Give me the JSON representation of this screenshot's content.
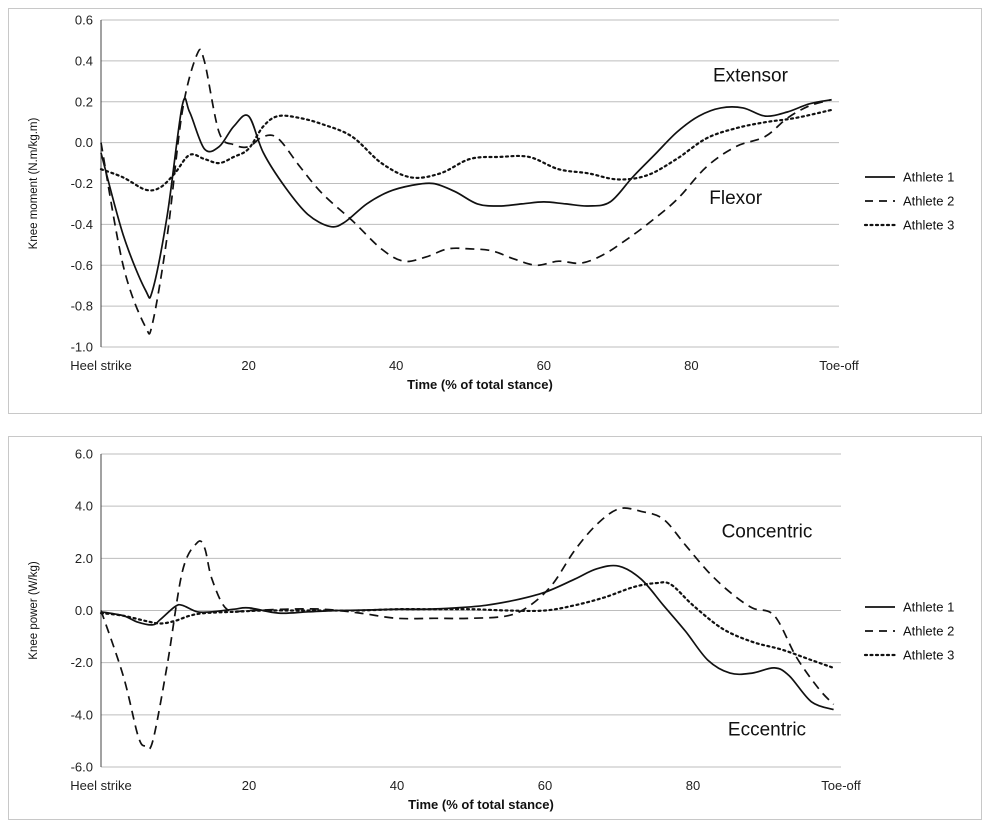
{
  "chart_data": [
    {
      "type": "line",
      "ylabel": "Knee moment (N.m/kg.m)",
      "xlabel": "Time (% of total stance)",
      "x_tick_labels": [
        {
          "x": 0,
          "label": "Heel strike"
        },
        {
          "x": 20,
          "label": "20"
        },
        {
          "x": 40,
          "label": "40"
        },
        {
          "x": 60,
          "label": "60"
        },
        {
          "x": 80,
          "label": "80"
        },
        {
          "x": 100,
          "label": "Toe-off"
        }
      ],
      "y_tick_labels": [
        "0.6",
        "0.4",
        "0.2",
        "0.0",
        "-0.2",
        "-0.4",
        "-0.6",
        "-0.8",
        "-1.0"
      ],
      "xlim": [
        0,
        100
      ],
      "ylim": [
        -1.0,
        0.6
      ],
      "yticks": [
        0.6,
        0.4,
        0.2,
        0.0,
        -0.2,
        -0.4,
        -0.6,
        -0.8,
        -1.0
      ],
      "grid": true,
      "legend_position": "right",
      "annotations": [
        {
          "text": "Extensor",
          "x": 88,
          "y": 0.3
        },
        {
          "text": "Flexor",
          "x": 86,
          "y": -0.3
        }
      ],
      "series": [
        {
          "name": "Athlete 1",
          "style": "solid",
          "x": [
            0,
            3,
            6,
            7,
            9,
            11,
            12,
            14,
            16,
            18,
            20,
            22,
            25,
            28,
            31,
            33,
            36,
            39,
            42,
            45,
            48,
            51,
            54,
            57,
            60,
            63,
            66,
            69,
            72,
            75,
            78,
            81,
            84,
            87,
            90,
            93,
            96,
            99
          ],
          "values": [
            -0.05,
            -0.45,
            -0.72,
            -0.72,
            -0.35,
            0.18,
            0.15,
            -0.03,
            -0.02,
            0.08,
            0.13,
            -0.05,
            -0.22,
            -0.35,
            -0.41,
            -0.39,
            -0.3,
            -0.24,
            -0.21,
            -0.2,
            -0.24,
            -0.3,
            -0.31,
            -0.3,
            -0.29,
            -0.3,
            -0.31,
            -0.29,
            -0.17,
            -0.06,
            0.05,
            0.13,
            0.17,
            0.17,
            0.13,
            0.15,
            0.19,
            0.21
          ]
        },
        {
          "name": "Athlete 2",
          "style": "dashed",
          "x": [
            0,
            3,
            6,
            7,
            9,
            11,
            13,
            14,
            16,
            18,
            20,
            22,
            24,
            27,
            30,
            34,
            38,
            41,
            44,
            47,
            50,
            53,
            56,
            59,
            62,
            65,
            68,
            71,
            74,
            78,
            82,
            86,
            90,
            93,
            96,
            99
          ],
          "values": [
            0.0,
            -0.6,
            -0.9,
            -0.88,
            -0.45,
            0.15,
            0.43,
            0.4,
            0.05,
            -0.01,
            -0.02,
            0.03,
            0.02,
            -0.12,
            -0.25,
            -0.38,
            -0.52,
            -0.58,
            -0.56,
            -0.52,
            -0.52,
            -0.53,
            -0.57,
            -0.6,
            -0.58,
            -0.59,
            -0.55,
            -0.48,
            -0.4,
            -0.28,
            -0.12,
            -0.02,
            0.03,
            0.12,
            0.18,
            0.21
          ]
        },
        {
          "name": "Athlete 3",
          "style": "dotted",
          "x": [
            0,
            3,
            6,
            8,
            10,
            12,
            14,
            16,
            18,
            20,
            22,
            24,
            27,
            30,
            34,
            38,
            42,
            46,
            50,
            54,
            58,
            62,
            66,
            70,
            74,
            78,
            82,
            86,
            90,
            94,
            99
          ],
          "values": [
            -0.13,
            -0.17,
            -0.23,
            -0.22,
            -0.15,
            -0.06,
            -0.08,
            -0.1,
            -0.07,
            -0.03,
            0.08,
            0.13,
            0.12,
            0.09,
            0.03,
            -0.1,
            -0.17,
            -0.15,
            -0.08,
            -0.07,
            -0.07,
            -0.13,
            -0.15,
            -0.18,
            -0.16,
            -0.08,
            0.02,
            0.07,
            0.1,
            0.12,
            0.16
          ]
        }
      ]
    },
    {
      "type": "line",
      "ylabel": "Knee power (W/kg)",
      "xlabel": "Time (% of total stance)",
      "x_tick_labels": [
        {
          "x": 0,
          "label": "Heel strike"
        },
        {
          "x": 20,
          "label": "20"
        },
        {
          "x": 40,
          "label": "40"
        },
        {
          "x": 60,
          "label": "60"
        },
        {
          "x": 80,
          "label": "80"
        },
        {
          "x": 100,
          "label": "Toe-off"
        }
      ],
      "y_tick_labels": [
        "6.0",
        "4.0",
        "2.0",
        "0.0",
        "-2.0",
        "-4.0",
        "-6.0"
      ],
      "xlim": [
        0,
        100
      ],
      "ylim": [
        -6.0,
        6.0
      ],
      "yticks": [
        6.0,
        4.0,
        2.0,
        0.0,
        -2.0,
        -4.0,
        -6.0
      ],
      "grid": true,
      "legend_position": "right",
      "annotations": [
        {
          "text": "Concentric",
          "x": 90,
          "y": 2.8
        },
        {
          "text": "Eccentric",
          "x": 90,
          "y": -4.8
        }
      ],
      "series": [
        {
          "name": "Athlete 1",
          "style": "solid",
          "x": [
            0,
            3,
            5,
            7,
            8,
            10,
            11,
            13,
            15,
            18,
            20,
            24,
            28,
            32,
            36,
            40,
            44,
            48,
            52,
            56,
            60,
            64,
            67,
            70,
            73,
            76,
            79,
            82,
            85,
            88,
            91,
            93,
            96,
            99
          ],
          "values": [
            -0.05,
            -0.2,
            -0.45,
            -0.55,
            -0.35,
            0.15,
            0.2,
            -0.05,
            -0.05,
            0.05,
            0.1,
            -0.1,
            -0.05,
            0.0,
            0.02,
            0.05,
            0.05,
            0.1,
            0.2,
            0.4,
            0.7,
            1.2,
            1.6,
            1.7,
            1.2,
            0.2,
            -0.8,
            -1.9,
            -2.4,
            -2.4,
            -2.2,
            -2.5,
            -3.5,
            -3.8
          ]
        },
        {
          "name": "Athlete 2",
          "style": "dashed",
          "x": [
            0,
            3,
            5,
            6,
            7,
            9,
            11,
            13,
            14,
            15,
            17,
            20,
            25,
            30,
            35,
            40,
            45,
            50,
            55,
            58,
            61,
            64,
            67,
            70,
            73,
            76,
            79,
            82,
            85,
            88,
            91,
            94,
            97,
            99
          ],
          "values": [
            0.0,
            -2.5,
            -4.8,
            -5.2,
            -5.0,
            -2.0,
            1.5,
            2.6,
            2.4,
            1.2,
            0.05,
            0.0,
            0.05,
            0.05,
            -0.1,
            -0.3,
            -0.3,
            -0.3,
            -0.2,
            0.2,
            1.0,
            2.3,
            3.3,
            3.9,
            3.8,
            3.5,
            2.5,
            1.5,
            0.7,
            0.1,
            -0.2,
            -1.8,
            -3.0,
            -3.6
          ]
        },
        {
          "name": "Athlete 3",
          "style": "dotted",
          "x": [
            0,
            3,
            6,
            8,
            10,
            12,
            14,
            18,
            22,
            26,
            30,
            35,
            40,
            45,
            50,
            55,
            60,
            64,
            68,
            72,
            75,
            77,
            80,
            84,
            88,
            92,
            96,
            99
          ],
          "values": [
            -0.1,
            -0.2,
            -0.4,
            -0.5,
            -0.4,
            -0.2,
            -0.1,
            -0.05,
            0.0,
            0.0,
            0.0,
            0.0,
            0.05,
            0.05,
            0.05,
            0.0,
            0.0,
            0.2,
            0.5,
            0.9,
            1.05,
            1.0,
            0.2,
            -0.7,
            -1.2,
            -1.5,
            -1.9,
            -2.2
          ]
        }
      ]
    }
  ]
}
